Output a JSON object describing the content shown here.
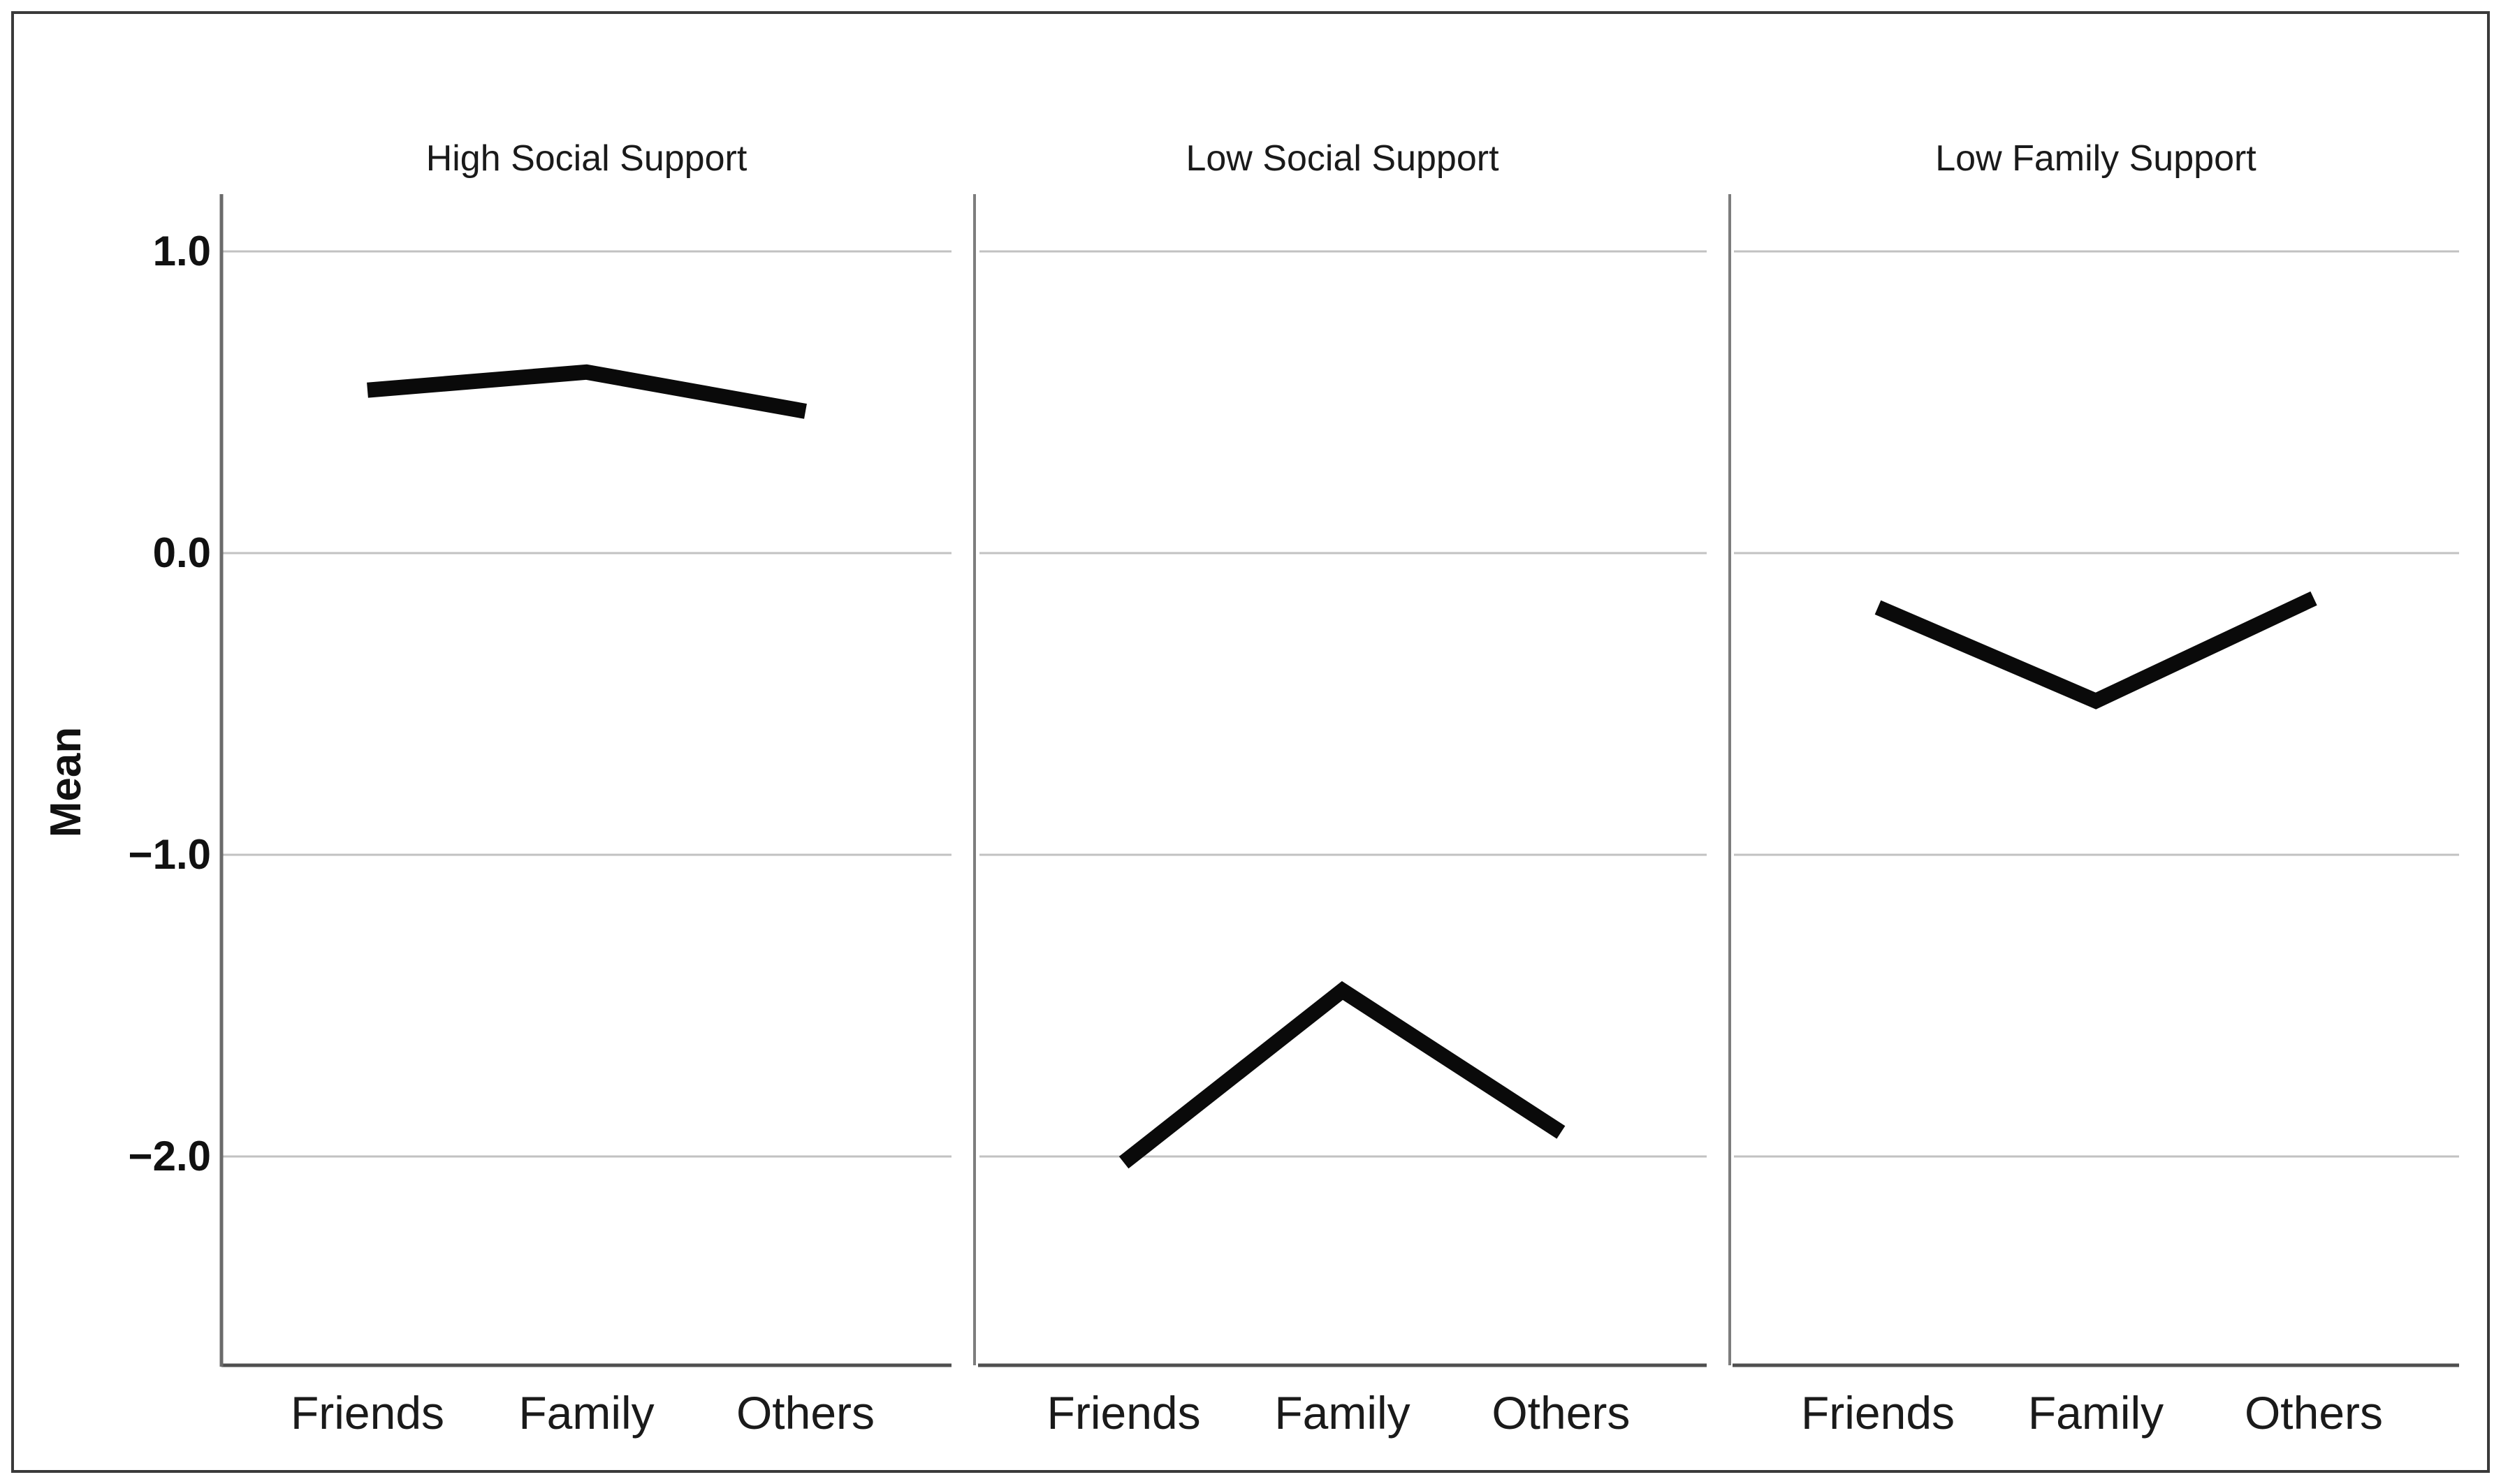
{
  "chart_data": {
    "type": "line",
    "title": "",
    "ylabel": "Mean",
    "categories": [
      "Friends",
      "Family",
      "Others"
    ],
    "yticks": [
      {
        "label": "1.0",
        "value": 1.0
      },
      {
        "label": "0.0",
        "value": 0.0
      },
      {
        "label": "−1.0",
        "value": -1.0
      },
      {
        "label": "−2.0",
        "value": -2.0
      }
    ],
    "ylim": [
      -2.69,
      1.19
    ],
    "grid": "horizontal",
    "legend": "none",
    "facet_layout": "3 side-by-side panels sharing one y-axis",
    "panels": [
      {
        "title": "High Social Support",
        "values": [
          0.54,
          0.6,
          0.47
        ]
      },
      {
        "title": "Low Social Support",
        "values": [
          -2.02,
          -1.45,
          -1.92
        ]
      },
      {
        "title": "Low Family Support",
        "values": [
          -0.18,
          -0.49,
          -0.15
        ]
      }
    ],
    "colors": {
      "line": "#0a0a0a",
      "gridline": "#c2c2c2",
      "axis": "#6b6b6b",
      "baseline": "#4f4f4f",
      "divider": "#7d7d7d",
      "text": "#1a1a1a",
      "frame_border": "#3a3a3a",
      "background": "#ffffff"
    }
  }
}
